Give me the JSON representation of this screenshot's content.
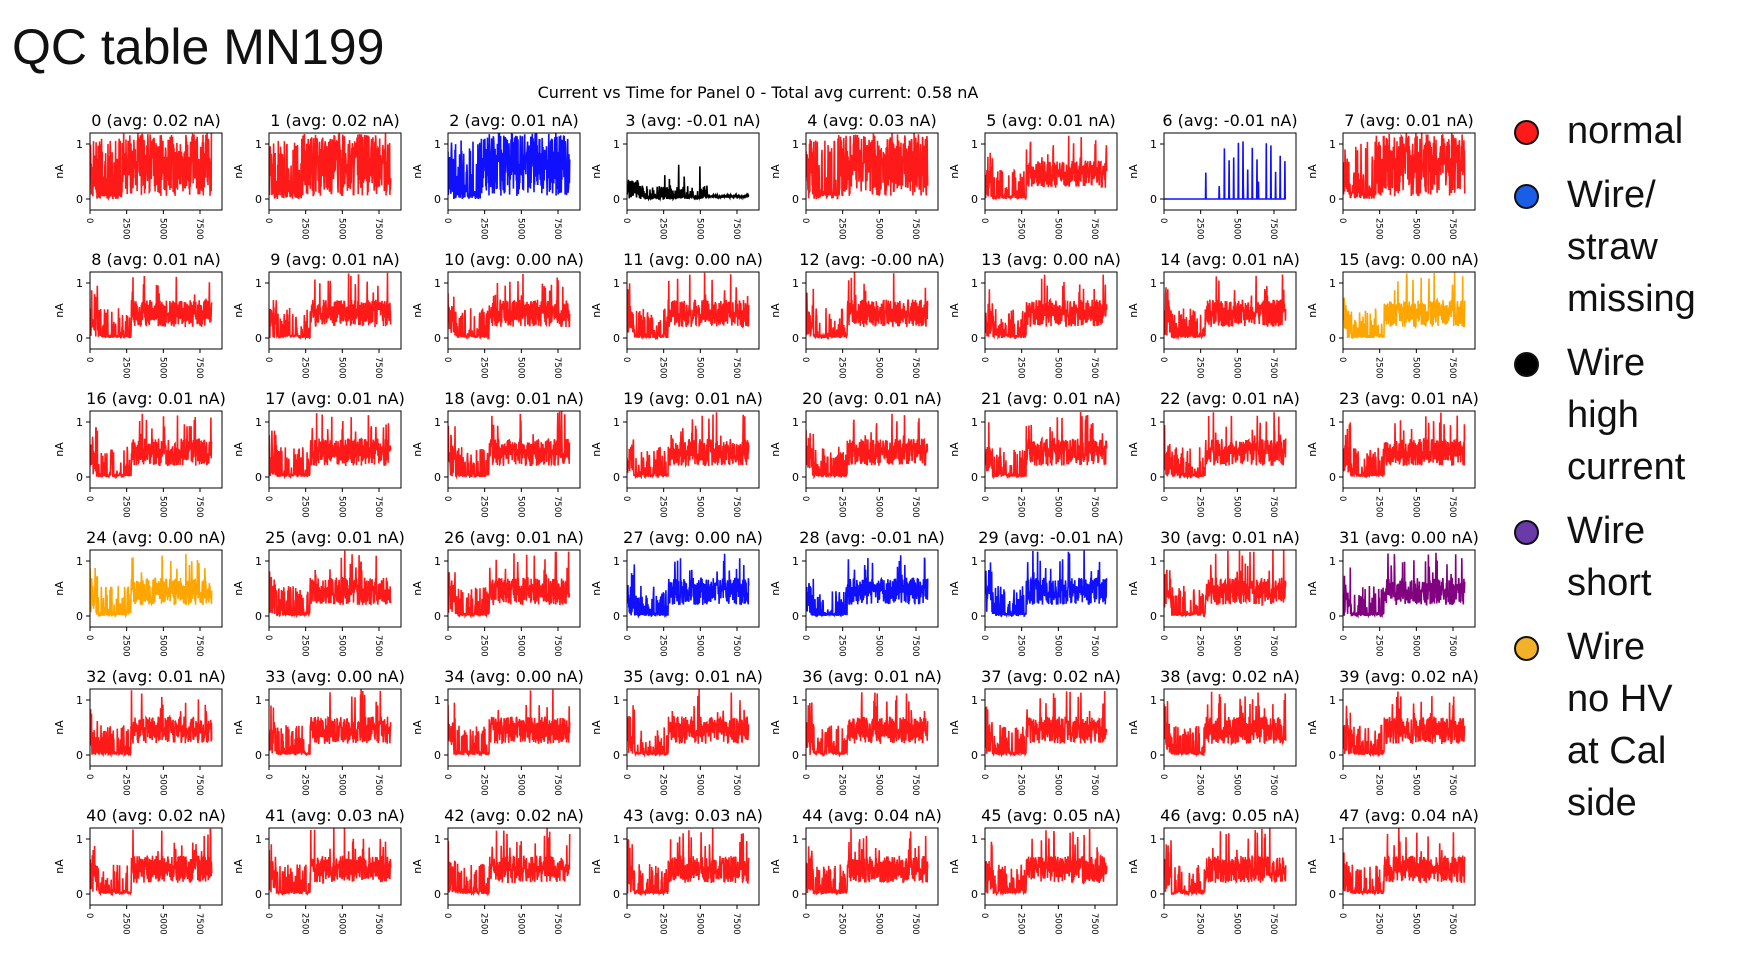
{
  "slide_title": "QC table MN199",
  "chart_data": {
    "type": "line",
    "title": "Current vs Time for Panel 0 - Total avg current: 0.58 nA",
    "ylabel": "nA",
    "xlim": [
      0,
      9000
    ],
    "ylim": [
      -0.2,
      1.2
    ],
    "xticks": [
      "0",
      "2500",
      "5000",
      "7500"
    ],
    "yticks": [
      "0",
      "1"
    ],
    "panels": [
      {
        "id": 0,
        "title": "0 (avg: 0.02 nA)",
        "color": "#ff1a1a",
        "pattern": "busy"
      },
      {
        "id": 1,
        "title": "1 (avg: 0.02 nA)",
        "color": "#ff1a1a",
        "pattern": "busy"
      },
      {
        "id": 2,
        "title": "2 (avg: 0.01 nA)",
        "color": "#1010ff",
        "pattern": "busy"
      },
      {
        "id": 3,
        "title": "3 (avg: -0.01 nA)",
        "color": "#000000",
        "pattern": "low"
      },
      {
        "id": 4,
        "title": "4 (avg: 0.03 nA)",
        "color": "#ff1a1a",
        "pattern": "busy"
      },
      {
        "id": 5,
        "title": "5 (avg: 0.01 nA)",
        "color": "#ff1a1a",
        "pattern": "normal"
      },
      {
        "id": 6,
        "title": "6 (avg: -0.01 nA)",
        "color": "#1010ff",
        "pattern": "spikes"
      },
      {
        "id": 7,
        "title": "7 (avg: 0.01 nA)",
        "color": "#ff1a1a",
        "pattern": "busy"
      },
      {
        "id": 8,
        "title": "8 (avg: 0.01 nA)",
        "color": "#ff1a1a",
        "pattern": "normal"
      },
      {
        "id": 9,
        "title": "9 (avg: 0.01 nA)",
        "color": "#ff1a1a",
        "pattern": "normal"
      },
      {
        "id": 10,
        "title": "10 (avg: 0.00 nA)",
        "color": "#ff1a1a",
        "pattern": "normal"
      },
      {
        "id": 11,
        "title": "11 (avg: 0.00 nA)",
        "color": "#ff1a1a",
        "pattern": "normal"
      },
      {
        "id": 12,
        "title": "12 (avg: -0.00 nA)",
        "color": "#ff1a1a",
        "pattern": "normal"
      },
      {
        "id": 13,
        "title": "13 (avg: 0.00 nA)",
        "color": "#ff1a1a",
        "pattern": "normal"
      },
      {
        "id": 14,
        "title": "14 (avg: 0.01 nA)",
        "color": "#ff1a1a",
        "pattern": "normal"
      },
      {
        "id": 15,
        "title": "15 (avg: 0.00 nA)",
        "color": "#ffa500",
        "pattern": "normal"
      },
      {
        "id": 16,
        "title": "16 (avg: 0.01 nA)",
        "color": "#ff1a1a",
        "pattern": "normal"
      },
      {
        "id": 17,
        "title": "17 (avg: 0.01 nA)",
        "color": "#ff1a1a",
        "pattern": "normal"
      },
      {
        "id": 18,
        "title": "18 (avg: 0.01 nA)",
        "color": "#ff1a1a",
        "pattern": "normal"
      },
      {
        "id": 19,
        "title": "19 (avg: 0.01 nA)",
        "color": "#ff1a1a",
        "pattern": "normal"
      },
      {
        "id": 20,
        "title": "20 (avg: 0.01 nA)",
        "color": "#ff1a1a",
        "pattern": "normal"
      },
      {
        "id": 21,
        "title": "21 (avg: 0.01 nA)",
        "color": "#ff1a1a",
        "pattern": "normal"
      },
      {
        "id": 22,
        "title": "22 (avg: 0.01 nA)",
        "color": "#ff1a1a",
        "pattern": "normal"
      },
      {
        "id": 23,
        "title": "23 (avg: 0.01 nA)",
        "color": "#ff1a1a",
        "pattern": "normal"
      },
      {
        "id": 24,
        "title": "24 (avg: 0.00 nA)",
        "color": "#ffa500",
        "pattern": "normal"
      },
      {
        "id": 25,
        "title": "25 (avg: 0.01 nA)",
        "color": "#ff1a1a",
        "pattern": "normal"
      },
      {
        "id": 26,
        "title": "26 (avg: 0.01 nA)",
        "color": "#ff1a1a",
        "pattern": "normal"
      },
      {
        "id": 27,
        "title": "27 (avg: 0.00 nA)",
        "color": "#1010ff",
        "pattern": "normal"
      },
      {
        "id": 28,
        "title": "28 (avg: -0.01 nA)",
        "color": "#1010ff",
        "pattern": "normal"
      },
      {
        "id": 29,
        "title": "29 (avg: -0.01 nA)",
        "color": "#1010ff",
        "pattern": "normal"
      },
      {
        "id": 30,
        "title": "30 (avg: 0.01 nA)",
        "color": "#ff1a1a",
        "pattern": "normal"
      },
      {
        "id": 31,
        "title": "31 (avg: 0.00 nA)",
        "color": "#800080",
        "pattern": "normal"
      },
      {
        "id": 32,
        "title": "32 (avg: 0.01 nA)",
        "color": "#ff1a1a",
        "pattern": "normal"
      },
      {
        "id": 33,
        "title": "33 (avg: 0.00 nA)",
        "color": "#ff1a1a",
        "pattern": "normal"
      },
      {
        "id": 34,
        "title": "34 (avg: 0.00 nA)",
        "color": "#ff1a1a",
        "pattern": "normal"
      },
      {
        "id": 35,
        "title": "35 (avg: 0.01 nA)",
        "color": "#ff1a1a",
        "pattern": "normal"
      },
      {
        "id": 36,
        "title": "36 (avg: 0.01 nA)",
        "color": "#ff1a1a",
        "pattern": "normal"
      },
      {
        "id": 37,
        "title": "37 (avg: 0.02 nA)",
        "color": "#ff1a1a",
        "pattern": "normal"
      },
      {
        "id": 38,
        "title": "38 (avg: 0.02 nA)",
        "color": "#ff1a1a",
        "pattern": "normal"
      },
      {
        "id": 39,
        "title": "39 (avg: 0.02 nA)",
        "color": "#ff1a1a",
        "pattern": "normal"
      },
      {
        "id": 40,
        "title": "40 (avg: 0.02 nA)",
        "color": "#ff1a1a",
        "pattern": "normal"
      },
      {
        "id": 41,
        "title": "41 (avg: 0.03 nA)",
        "color": "#ff1a1a",
        "pattern": "normal"
      },
      {
        "id": 42,
        "title": "42 (avg: 0.02 nA)",
        "color": "#ff1a1a",
        "pattern": "normal"
      },
      {
        "id": 43,
        "title": "43 (avg: 0.03 nA)",
        "color": "#ff1a1a",
        "pattern": "normal"
      },
      {
        "id": 44,
        "title": "44 (avg: 0.04 nA)",
        "color": "#ff1a1a",
        "pattern": "normal"
      },
      {
        "id": 45,
        "title": "45 (avg: 0.05 nA)",
        "color": "#ff1a1a",
        "pattern": "normal"
      },
      {
        "id": 46,
        "title": "46 (avg: 0.05 nA)",
        "color": "#ff1a1a",
        "pattern": "normal"
      },
      {
        "id": 47,
        "title": "47 (avg: 0.04 nA)",
        "color": "#ff1a1a",
        "pattern": "normal"
      }
    ]
  },
  "legend": [
    {
      "lines": [
        "normal"
      ],
      "color": "#ff1a1a"
    },
    {
      "lines": [
        "Wire/",
        "straw",
        "missing"
      ],
      "color": "#1a5ee8"
    },
    {
      "lines": [
        "Wire",
        "high",
        "current"
      ],
      "color": "#000000"
    },
    {
      "lines": [
        "Wire",
        "short"
      ],
      "color": "#6a3aa8"
    },
    {
      "lines": [
        "Wire",
        "no HV",
        "at Cal",
        "side"
      ],
      "color": "#f2b128"
    }
  ]
}
